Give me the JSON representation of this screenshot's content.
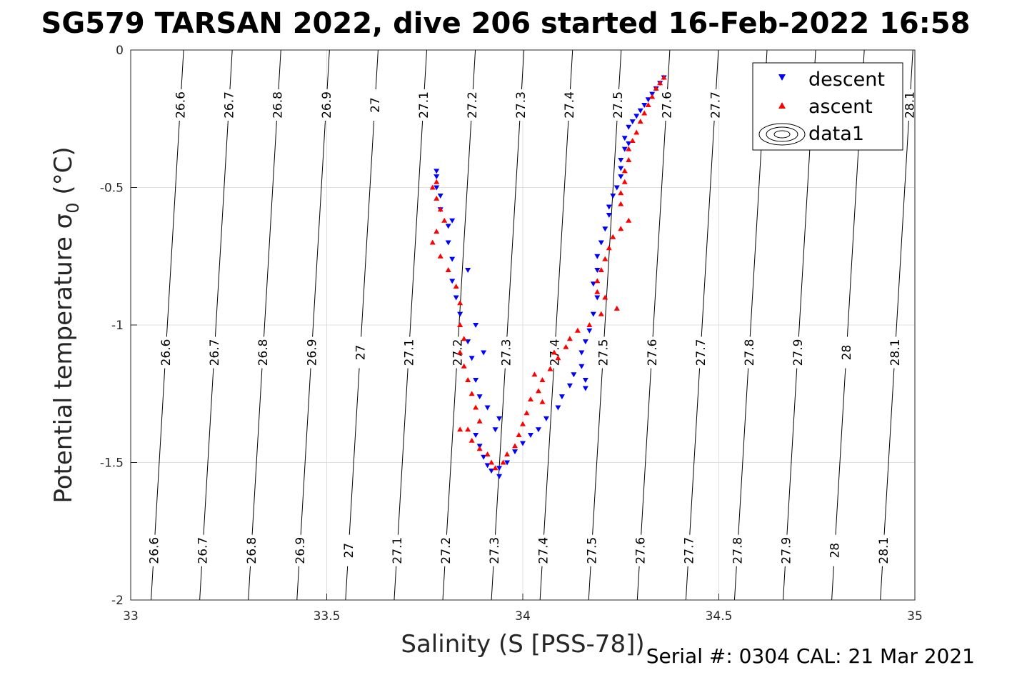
{
  "chart_data": {
    "type": "scatter",
    "title": "SG579 TARSAN 2022, dive 206 started 16-Feb-2022 16:58",
    "xlabel": "Salinity (S [PSS-78])",
    "ylabel": "Potential temperature σ",
    "ylabel_sub": "0",
    "ylabel_unit": " (°C)",
    "xlim": [
      33,
      35
    ],
    "ylim": [
      -2,
      0
    ],
    "xticks": [
      "33",
      "33.5",
      "34",
      "34.5",
      "35"
    ],
    "xtick_values": [
      33,
      33.5,
      34,
      34.5,
      35
    ],
    "yticks": [
      "-2",
      "-1.5",
      "-1",
      "-0.5",
      "0"
    ],
    "ytick_values": [
      -2,
      -1.5,
      -1,
      -0.5,
      0
    ],
    "grid": true,
    "legend_position": "top-right",
    "legend": [
      "descent",
      "ascent",
      "data1"
    ],
    "footer": "Serial #: 0304  CAL: 21 Mar 2021",
    "contours": {
      "levels": [
        26.6,
        26.7,
        26.8,
        26.9,
        27,
        27.1,
        27.2,
        27.3,
        27.4,
        27.5,
        27.6,
        27.7,
        27.8,
        27.9,
        28,
        28.1
      ],
      "labels": [
        "26.6",
        "26.7",
        "26.8",
        "26.9",
        "27",
        "27.1",
        "27.2",
        "27.3",
        "27.4",
        "27.5",
        "27.6",
        "27.7",
        "27.8",
        "27.9",
        "28",
        "28.1"
      ],
      "salinity_at_top": [
        33.135,
        33.259,
        33.383,
        33.507,
        33.631,
        33.755,
        33.879,
        34.003,
        34.127,
        34.251,
        34.375,
        34.499,
        34.623,
        34.747,
        34.871,
        34.995
      ],
      "salinity_at_bottom": [
        33.052,
        33.176,
        33.3,
        33.424,
        33.548,
        33.672,
        33.796,
        33.92,
        34.044,
        34.168,
        34.292,
        34.416,
        34.54,
        34.664,
        34.788,
        34.912
      ]
    },
    "series": [
      {
        "name": "descent",
        "color": "#0000ff",
        "marker": "triangle-down",
        "points": [
          [
            34.36,
            -0.1
          ],
          [
            34.35,
            -0.12
          ],
          [
            34.34,
            -0.14
          ],
          [
            34.33,
            -0.16
          ],
          [
            34.32,
            -0.18
          ],
          [
            34.31,
            -0.2
          ],
          [
            34.3,
            -0.22
          ],
          [
            34.29,
            -0.24
          ],
          [
            34.28,
            -0.26
          ],
          [
            34.27,
            -0.28
          ],
          [
            34.26,
            -0.32
          ],
          [
            34.27,
            -0.34
          ],
          [
            34.26,
            -0.36
          ],
          [
            34.25,
            -0.4
          ],
          [
            34.25,
            -0.43
          ],
          [
            34.25,
            -0.46
          ],
          [
            34.24,
            -0.5
          ],
          [
            34.23,
            -0.53
          ],
          [
            34.22,
            -0.57
          ],
          [
            34.22,
            -0.6
          ],
          [
            34.21,
            -0.65
          ],
          [
            34.2,
            -0.7
          ],
          [
            34.19,
            -0.75
          ],
          [
            34.19,
            -0.8
          ],
          [
            34.18,
            -0.85
          ],
          [
            34.19,
            -0.9
          ],
          [
            34.18,
            -0.96
          ],
          [
            34.17,
            -1.02
          ],
          [
            34.16,
            -1.06
          ],
          [
            34.15,
            -1.1
          ],
          [
            34.15,
            -1.15
          ],
          [
            34.16,
            -1.2
          ],
          [
            34.16,
            -1.23
          ],
          [
            34.13,
            -1.18
          ],
          [
            34.12,
            -1.22
          ],
          [
            34.1,
            -1.26
          ],
          [
            34.09,
            -1.3
          ],
          [
            34.06,
            -1.34
          ],
          [
            34.04,
            -1.38
          ],
          [
            34.02,
            -1.4
          ],
          [
            34.0,
            -1.43
          ],
          [
            33.98,
            -1.46
          ],
          [
            33.96,
            -1.5
          ],
          [
            33.94,
            -1.52
          ],
          [
            33.92,
            -1.53
          ],
          [
            33.94,
            -1.55
          ],
          [
            33.91,
            -1.51
          ],
          [
            33.9,
            -1.48
          ],
          [
            33.89,
            -1.44
          ],
          [
            33.88,
            -1.4
          ],
          [
            33.93,
            -1.38
          ],
          [
            33.94,
            -1.34
          ],
          [
            33.91,
            -1.3
          ],
          [
            33.89,
            -1.26
          ],
          [
            33.88,
            -1.2
          ],
          [
            33.87,
            -1.12
          ],
          [
            33.86,
            -1.06
          ],
          [
            33.84,
            -0.96
          ],
          [
            33.83,
            -0.9
          ],
          [
            33.82,
            -0.84
          ],
          [
            33.82,
            -0.76
          ],
          [
            33.81,
            -0.7
          ],
          [
            33.81,
            -0.64
          ],
          [
            33.79,
            -0.58
          ],
          [
            33.79,
            -0.53
          ],
          [
            33.78,
            -0.5
          ],
          [
            33.78,
            -0.46
          ],
          [
            33.78,
            -0.44
          ],
          [
            33.82,
            -0.62
          ],
          [
            33.86,
            -0.8
          ],
          [
            33.88,
            -1.0
          ],
          [
            33.9,
            -1.1
          ]
        ]
      },
      {
        "name": "ascent",
        "color": "#ff0000",
        "marker": "triangle-up",
        "points": [
          [
            34.36,
            -0.1
          ],
          [
            34.35,
            -0.12
          ],
          [
            34.34,
            -0.14
          ],
          [
            34.33,
            -0.17
          ],
          [
            34.32,
            -0.2
          ],
          [
            34.31,
            -0.23
          ],
          [
            34.3,
            -0.26
          ],
          [
            34.29,
            -0.3
          ],
          [
            34.28,
            -0.33
          ],
          [
            34.27,
            -0.36
          ],
          [
            34.27,
            -0.4
          ],
          [
            34.26,
            -0.44
          ],
          [
            34.26,
            -0.48
          ],
          [
            34.25,
            -0.52
          ],
          [
            34.25,
            -0.56
          ],
          [
            34.27,
            -0.62
          ],
          [
            34.25,
            -0.65
          ],
          [
            34.23,
            -0.68
          ],
          [
            34.22,
            -0.72
          ],
          [
            34.21,
            -0.76
          ],
          [
            34.2,
            -0.8
          ],
          [
            34.19,
            -0.84
          ],
          [
            34.19,
            -0.88
          ],
          [
            34.21,
            -0.9
          ],
          [
            34.24,
            -0.94
          ],
          [
            34.2,
            -0.96
          ],
          [
            34.17,
            -1.0
          ],
          [
            34.14,
            -1.02
          ],
          [
            34.12,
            -1.05
          ],
          [
            34.11,
            -1.08
          ],
          [
            34.09,
            -1.12
          ],
          [
            34.07,
            -1.16
          ],
          [
            34.05,
            -1.2
          ],
          [
            34.04,
            -1.24
          ],
          [
            34.02,
            -1.27
          ],
          [
            34.01,
            -1.32
          ],
          [
            34.0,
            -1.36
          ],
          [
            33.99,
            -1.4
          ],
          [
            33.98,
            -1.44
          ],
          [
            33.96,
            -1.47
          ],
          [
            33.95,
            -1.5
          ],
          [
            33.93,
            -1.52
          ],
          [
            33.92,
            -1.5
          ],
          [
            33.91,
            -1.47
          ],
          [
            33.89,
            -1.45
          ],
          [
            33.87,
            -1.42
          ],
          [
            33.86,
            -1.38
          ],
          [
            33.89,
            -1.35
          ],
          [
            33.88,
            -1.3
          ],
          [
            33.87,
            -1.25
          ],
          [
            33.86,
            -1.2
          ],
          [
            33.85,
            -1.15
          ],
          [
            33.84,
            -1.1
          ],
          [
            33.85,
            -1.05
          ],
          [
            33.84,
            -1.0
          ],
          [
            33.84,
            -0.92
          ],
          [
            33.83,
            -0.86
          ],
          [
            33.81,
            -0.8
          ],
          [
            33.79,
            -0.75
          ],
          [
            33.77,
            -0.7
          ],
          [
            33.78,
            -0.66
          ],
          [
            33.8,
            -0.62
          ],
          [
            33.79,
            -0.58
          ],
          [
            33.78,
            -0.54
          ],
          [
            33.77,
            -0.5
          ],
          [
            33.78,
            -0.48
          ],
          [
            33.84,
            -1.38
          ],
          [
            34.03,
            -1.18
          ],
          [
            34.05,
            -1.28
          ],
          [
            34.08,
            -1.1
          ]
        ]
      }
    ]
  }
}
